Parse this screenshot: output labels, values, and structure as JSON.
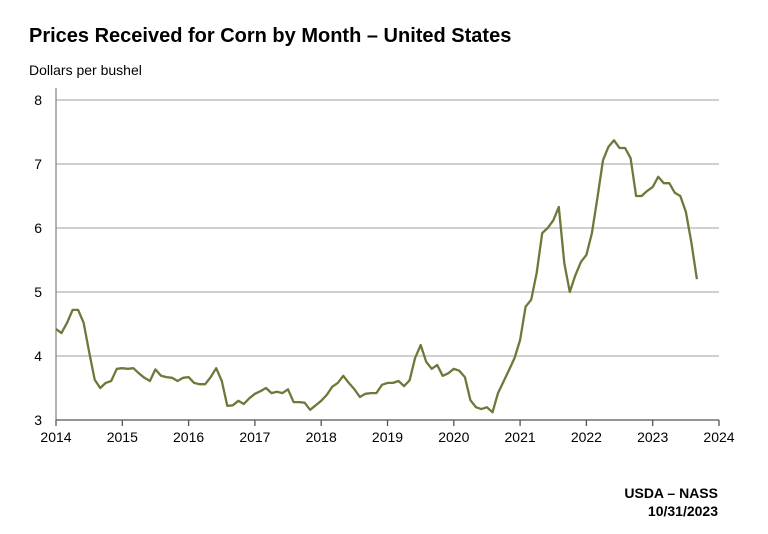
{
  "chart_data": {
    "type": "line",
    "title": "Prices Received for Corn by Month – United States",
    "ylabel": "Dollars per bushel",
    "xlabel": "",
    "xlim": [
      2014,
      2024
    ],
    "ylim": [
      3,
      8
    ],
    "xticks": [
      "2014",
      "2015",
      "2016",
      "2017",
      "2018",
      "2019",
      "2020",
      "2021",
      "2022",
      "2023",
      "2024"
    ],
    "yticks": [
      "3",
      "4",
      "5",
      "6",
      "7",
      "8"
    ],
    "grid": "horizontal",
    "line_color": "#6b7a3a",
    "start": "2014-01",
    "frequency": "monthly",
    "series": [
      {
        "values": [
          4.42,
          4.36,
          4.52,
          4.72,
          4.72,
          4.52,
          4.06,
          3.63,
          3.5,
          3.58,
          3.61,
          3.8,
          3.81,
          3.8,
          3.81,
          3.73,
          3.66,
          3.61,
          3.79,
          3.69,
          3.67,
          3.66,
          3.61,
          3.66,
          3.67,
          3.58,
          3.56,
          3.56,
          3.67,
          3.81,
          3.61,
          3.22,
          3.23,
          3.3,
          3.25,
          3.34,
          3.41,
          3.45,
          3.5,
          3.42,
          3.44,
          3.42,
          3.48,
          3.28,
          3.28,
          3.27,
          3.16,
          3.23,
          3.3,
          3.39,
          3.52,
          3.58,
          3.69,
          3.58,
          3.48,
          3.36,
          3.41,
          3.42,
          3.42,
          3.55,
          3.58,
          3.58,
          3.61,
          3.53,
          3.62,
          3.97,
          4.17,
          3.91,
          3.8,
          3.86,
          3.69,
          3.73,
          3.8,
          3.77,
          3.67,
          3.31,
          3.2,
          3.17,
          3.2,
          3.12,
          3.42,
          3.6,
          3.78,
          3.97,
          4.25,
          4.77,
          4.88,
          5.3,
          5.92,
          6.0,
          6.12,
          6.33,
          5.45,
          5.0,
          5.26,
          5.47,
          5.58,
          5.92,
          6.48,
          7.06,
          7.27,
          7.37,
          7.25,
          7.25,
          7.09,
          6.5,
          6.5,
          6.58,
          6.64,
          6.8,
          6.7,
          6.7,
          6.55,
          6.5,
          6.25,
          5.77,
          5.2
        ]
      }
    ]
  },
  "footer": {
    "source": "USDA – NASS",
    "date": "10/31/2023"
  }
}
